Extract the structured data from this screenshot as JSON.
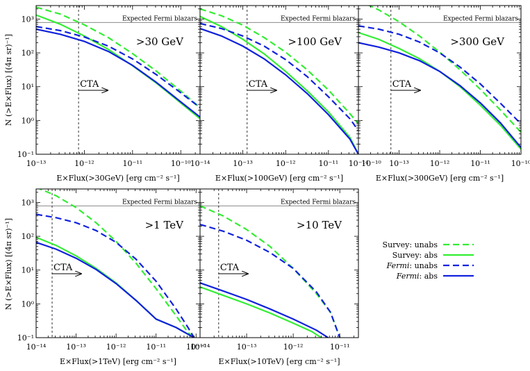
{
  "colors": {
    "survey": "#33ee33",
    "fermi": "#1122dd",
    "axes": "#000000",
    "fermi_line": "#888888"
  },
  "ylabel": "N (>E×Flux) [(4π sr)⁻¹]",
  "legend": {
    "placement": "right",
    "entries": [
      {
        "prefix": "Survey",
        "suffix": ": unabs",
        "italic": false,
        "color": "#33ee33",
        "dash": true
      },
      {
        "prefix": "Survey",
        "suffix": ": abs",
        "italic": false,
        "color": "#33ee33",
        "dash": false
      },
      {
        "prefix": "Fermi",
        "suffix": ": unabs",
        "italic": true,
        "color": "#1122dd",
        "dash": true
      },
      {
        "prefix": "Fermi",
        "suffix": ": abs",
        "italic": true,
        "color": "#1122dd",
        "dash": false
      }
    ]
  },
  "chart_data": [
    {
      "type": "line",
      "label": ">30 GeV",
      "xlabel": "E×Flux(>30GeV) [erg cm⁻² s⁻¹]",
      "xlim": [
        -13,
        -9.6
      ],
      "ylim": [
        -1,
        3.4
      ],
      "log_x": true,
      "log_y": true,
      "xticks": [
        -13,
        -12,
        -11,
        -10
      ],
      "yticks": [
        -1,
        0,
        1,
        2,
        3
      ],
      "expected_fermi": {
        "y": 2.9,
        "label": "Expected Fermi blazars"
      },
      "cta": {
        "x": -12.12,
        "label": "CTA"
      },
      "series": [
        {
          "name": "Survey: unabs",
          "x": [
            -13,
            -12.5,
            -12,
            -11.5,
            -11,
            -10.5,
            -10,
            -9.6
          ],
          "y": [
            3.35,
            3.15,
            2.83,
            2.45,
            1.98,
            1.45,
            0.87,
            0.38
          ]
        },
        {
          "name": "Survey: abs",
          "x": [
            -13,
            -12.5,
            -12,
            -11.5,
            -11,
            -10.5,
            -10,
            -9.6
          ],
          "y": [
            3.12,
            2.85,
            2.5,
            2.1,
            1.62,
            1.1,
            0.52,
            0.05
          ]
        },
        {
          "name": "Fermi: unabs",
          "x": [
            -13,
            -12.5,
            -12,
            -11.5,
            -11,
            -10.5,
            -10,
            -9.6
          ],
          "y": [
            2.78,
            2.66,
            2.47,
            2.2,
            1.82,
            1.35,
            0.82,
            0.38
          ]
        },
        {
          "name": "Fermi: abs",
          "x": [
            -13,
            -12.5,
            -12,
            -11.5,
            -11,
            -10.5,
            -10,
            -9.6
          ],
          "y": [
            2.7,
            2.55,
            2.34,
            2.04,
            1.63,
            1.12,
            0.55,
            0.1
          ]
        }
      ]
    },
    {
      "type": "line",
      "label": ">100 GeV",
      "xlabel": "E×Flux(>100GeV) [erg cm⁻² s⁻¹]",
      "xlim": [
        -14,
        -10.3
      ],
      "ylim": [
        -1,
        3.4
      ],
      "log_x": true,
      "log_y": true,
      "xticks": [
        -14,
        -13,
        -12,
        -11,
        -10
      ],
      "yticks": [
        -1,
        0,
        1,
        2,
        3
      ],
      "expected_fermi": {
        "y": 2.9,
        "label": "Expected Fermi blazars"
      },
      "cta": {
        "x": -12.9,
        "label": "CTA"
      },
      "series": [
        {
          "name": "Survey: unabs",
          "x": [
            -14,
            -13.5,
            -13,
            -12.5,
            -12,
            -11.5,
            -11,
            -10.5,
            -10.3
          ],
          "y": [
            3.3,
            3.1,
            2.82,
            2.45,
            2.02,
            1.5,
            0.9,
            0.2,
            -0.1
          ]
        },
        {
          "name": "Survey: abs",
          "x": [
            -14,
            -13.5,
            -13,
            -12.5,
            -12,
            -11.5,
            -11,
            -10.5,
            -10.3
          ],
          "y": [
            3.08,
            2.78,
            2.4,
            1.97,
            1.45,
            0.88,
            0.25,
            -0.5,
            -1.0
          ]
        },
        {
          "name": "Fermi: unabs",
          "x": [
            -14,
            -13.5,
            -13,
            -12.5,
            -12,
            -11.5,
            -11,
            -10.5,
            -10.3
          ],
          "y": [
            2.87,
            2.72,
            2.5,
            2.2,
            1.8,
            1.3,
            0.7,
            0.05,
            -0.3
          ]
        },
        {
          "name": "Fermi: abs",
          "x": [
            -14,
            -13.5,
            -13,
            -12.5,
            -12,
            -11.5,
            -11,
            -10.5,
            -10.3
          ],
          "y": [
            2.72,
            2.5,
            2.2,
            1.82,
            1.35,
            0.8,
            0.17,
            -0.55,
            -1.0
          ]
        }
      ]
    },
    {
      "type": "line",
      "label": ">300 GeV",
      "xlabel": "E×Flux(>300GeV) [erg cm⁻² s⁻¹]",
      "xlim": [
        -14,
        -10
      ],
      "ylim": [
        -1,
        3.4
      ],
      "log_x": true,
      "log_y": true,
      "xticks": [
        -14,
        -13,
        -12,
        -11,
        -10
      ],
      "yticks": [
        -1,
        0,
        1,
        2,
        3
      ],
      "expected_fermi": {
        "y": 2.9,
        "label": "Expected Fermi blazars"
      },
      "cta": {
        "x": -13.2,
        "label": "CTA"
      },
      "series": [
        {
          "name": "Survey: unabs",
          "x": [
            -14,
            -13.5,
            -13,
            -12.5,
            -12,
            -11.5,
            -11,
            -10.5,
            -10
          ],
          "y": [
            3.55,
            3.27,
            2.92,
            2.5,
            2.02,
            1.5,
            0.92,
            0.3,
            -0.35
          ]
        },
        {
          "name": "Survey: abs",
          "x": [
            -14,
            -13.5,
            -13,
            -12.5,
            -12,
            -11.5,
            -11,
            -10.5,
            -10
          ],
          "y": [
            2.6,
            2.4,
            2.13,
            1.83,
            1.45,
            1.0,
            0.45,
            -0.15,
            -0.85
          ]
        },
        {
          "name": "Fermi: unabs",
          "x": [
            -14,
            -13.5,
            -13,
            -12.5,
            -12,
            -11.5,
            -11,
            -10.5,
            -10
          ],
          "y": [
            2.8,
            2.7,
            2.55,
            2.32,
            2.0,
            1.58,
            1.08,
            0.5,
            -0.1
          ]
        },
        {
          "name": "Fermi: abs",
          "x": [
            -14,
            -13.5,
            -13,
            -12.5,
            -12,
            -11.5,
            -11,
            -10.5,
            -10
          ],
          "y": [
            2.3,
            2.17,
            2.0,
            1.77,
            1.45,
            1.03,
            0.52,
            -0.08,
            -0.8
          ]
        }
      ]
    },
    {
      "type": "line",
      "label": ">1 TeV",
      "xlabel": "E×Flux(>1TeV) [erg cm⁻² s⁻¹]",
      "xlim": [
        -14,
        -9.9
      ],
      "ylim": [
        -1,
        3.4
      ],
      "log_x": true,
      "log_y": true,
      "xticks": [
        -14,
        -13,
        -12,
        -11,
        -10
      ],
      "yticks": [
        -1,
        0,
        1,
        2,
        3
      ],
      "expected_fermi": {
        "y": 2.9,
        "label": "Expected Fermi blazars"
      },
      "cta": {
        "x": -13.6,
        "label": "CTA"
      },
      "series": [
        {
          "name": "Survey: unabs",
          "x": [
            -14,
            -13.5,
            -13,
            -12.5,
            -12,
            -11.5,
            -11,
            -10.5,
            -10.2,
            -10.05
          ],
          "y": [
            3.45,
            3.2,
            2.85,
            2.4,
            1.85,
            1.2,
            0.45,
            -0.35,
            -0.85,
            -1.0
          ]
        },
        {
          "name": "Survey: abs",
          "x": [
            -14,
            -13.5,
            -13,
            -12.5,
            -12,
            -11.5,
            -11,
            -10.5,
            -10.2,
            -10.05
          ],
          "y": [
            1.97,
            1.73,
            1.42,
            1.05,
            0.62,
            0.1,
            -0.45,
            -0.7,
            -0.9,
            -1.0
          ]
        },
        {
          "name": "Fermi: unabs",
          "x": [
            -14,
            -13.5,
            -13,
            -12.5,
            -12,
            -11.5,
            -11,
            -10.5,
            -10.2,
            -10.05
          ],
          "y": [
            2.65,
            2.55,
            2.4,
            2.17,
            1.82,
            1.32,
            0.67,
            -0.15,
            -0.7,
            -1.0
          ]
        },
        {
          "name": "Fermi: abs",
          "x": [
            -14,
            -13.5,
            -13,
            -12.5,
            -12,
            -11.5,
            -11,
            -10.5,
            -10.2,
            -10.05
          ],
          "y": [
            1.82,
            1.62,
            1.35,
            1.02,
            0.6,
            0.1,
            -0.45,
            -0.7,
            -0.9,
            -1.0
          ]
        }
      ]
    },
    {
      "type": "line",
      "label": ">10 TeV",
      "xlabel": "E×Flux(>10TeV) [erg cm⁻² s⁻¹]",
      "xlim": [
        -14,
        -10.6
      ],
      "ylim": [
        -1,
        3.4
      ],
      "log_x": true,
      "log_y": true,
      "xticks": [
        -14,
        -13,
        -12,
        -11
      ],
      "yticks": [
        -1,
        0,
        1,
        2,
        3
      ],
      "expected_fermi": {
        "y": 2.9,
        "label": "Expected Fermi blazars"
      },
      "cta": {
        "x": -13.6,
        "label": "CTA"
      },
      "series": [
        {
          "name": "Survey: unabs",
          "x": [
            -14,
            -13.5,
            -13,
            -12.5,
            -12,
            -11.5,
            -11.2,
            -11.0
          ],
          "y": [
            2.9,
            2.6,
            2.2,
            1.7,
            1.05,
            0.3,
            -0.25,
            -1.0
          ]
        },
        {
          "name": "Survey: abs",
          "x": [
            -14,
            -13.5,
            -13,
            -12.5,
            -12,
            -11.6,
            -11.4
          ],
          "y": [
            0.5,
            0.25,
            0.0,
            -0.27,
            -0.57,
            -0.82,
            -1.0
          ]
        },
        {
          "name": "Fermi: unabs",
          "x": [
            -14,
            -13.5,
            -13,
            -12.5,
            -12,
            -11.5,
            -11.2,
            -11.0
          ],
          "y": [
            2.35,
            2.15,
            1.88,
            1.52,
            1.05,
            0.35,
            -0.25,
            -1.0
          ]
        },
        {
          "name": "Fermi: abs",
          "x": [
            -14,
            -13.5,
            -13,
            -12.5,
            -12,
            -11.5,
            -11.25
          ],
          "y": [
            0.62,
            0.38,
            0.13,
            -0.15,
            -0.45,
            -0.78,
            -1.0
          ]
        }
      ]
    }
  ]
}
